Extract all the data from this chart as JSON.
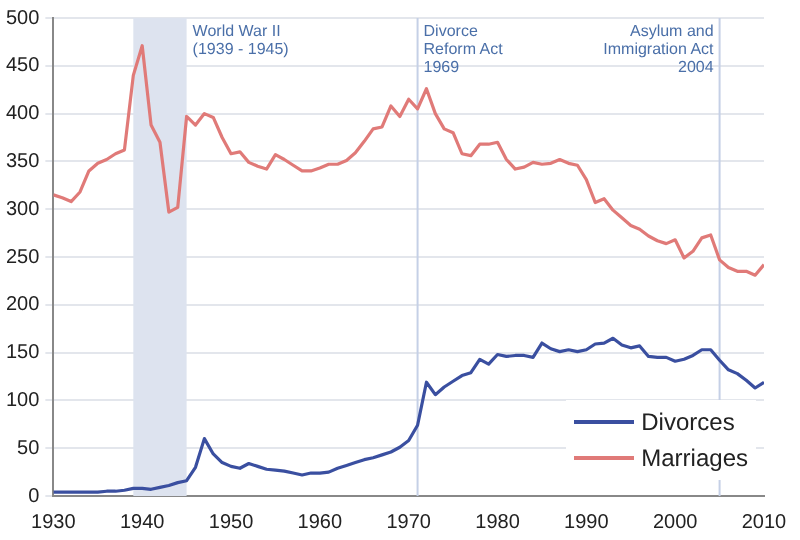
{
  "chart_data": {
    "type": "line",
    "x": [
      1930,
      1931,
      1932,
      1933,
      1934,
      1935,
      1936,
      1937,
      1938,
      1939,
      1940,
      1941,
      1942,
      1943,
      1944,
      1945,
      1946,
      1947,
      1948,
      1949,
      1950,
      1951,
      1952,
      1953,
      1954,
      1955,
      1956,
      1957,
      1958,
      1959,
      1960,
      1961,
      1962,
      1963,
      1964,
      1965,
      1966,
      1967,
      1968,
      1969,
      1970,
      1971,
      1972,
      1973,
      1974,
      1975,
      1976,
      1977,
      1978,
      1979,
      1980,
      1981,
      1982,
      1983,
      1984,
      1985,
      1986,
      1987,
      1988,
      1989,
      1990,
      1991,
      1992,
      1993,
      1994,
      1995,
      1996,
      1997,
      1998,
      1999,
      2000,
      2001,
      2002,
      2003,
      2004,
      2005,
      2006,
      2007,
      2008,
      2009,
      2010
    ],
    "series": [
      {
        "name": "Divorces",
        "color": "#3a4fa0",
        "values": [
          4,
          4,
          4,
          4,
          4,
          4,
          5,
          5,
          6,
          8,
          8,
          7,
          9,
          11,
          14,
          16,
          30,
          60,
          44,
          35,
          31,
          29,
          34,
          31,
          28,
          27,
          26,
          24,
          22,
          24,
          24,
          25,
          29,
          32,
          35,
          38,
          40,
          43,
          46,
          51,
          58,
          74,
          119,
          106,
          114,
          120,
          126,
          129,
          143,
          138,
          148,
          146,
          147,
          147,
          145,
          160,
          154,
          151,
          153,
          151,
          153,
          159,
          160,
          165,
          158,
          155,
          157,
          146,
          145,
          145,
          141,
          143,
          147,
          153,
          153,
          142,
          132,
          128,
          121,
          113,
          119
        ]
      },
      {
        "name": "Marriages",
        "color": "#e07a78",
        "values": [
          315,
          312,
          308,
          318,
          340,
          348,
          352,
          358,
          362,
          440,
          471,
          388,
          370,
          297,
          302,
          397,
          388,
          400,
          396,
          375,
          358,
          360,
          349,
          345,
          342,
          357,
          352,
          346,
          340,
          340,
          343,
          347,
          347,
          351,
          359,
          371,
          384,
          386,
          408,
          397,
          415,
          405,
          426,
          400,
          384,
          380,
          358,
          356,
          368,
          368,
          370,
          352,
          342,
          344,
          349,
          347,
          348,
          352,
          348,
          346,
          331,
          307,
          311,
          299,
          291,
          283,
          279,
          272,
          267,
          264,
          268,
          249,
          256,
          270,
          273,
          247,
          239,
          235,
          235,
          231,
          242
        ]
      }
    ],
    "xlim": [
      1930,
      2010
    ],
    "xticks": [
      1930,
      1940,
      1950,
      1960,
      1970,
      1980,
      1990,
      2000,
      2010
    ],
    "ylim": [
      0,
      500
    ],
    "yticks": [
      0,
      50,
      100,
      150,
      200,
      250,
      300,
      350,
      400,
      450,
      500
    ],
    "grid": "y",
    "legend": "bottom right",
    "bands": [
      {
        "axis": "x",
        "from": 1939,
        "to": 1945,
        "label": "World War II\n(1939 - 1945)",
        "color": "#dde3ef"
      }
    ],
    "ref_lines": [
      {
        "axis": "x",
        "value": 1971,
        "label": "Divorce\nReform Act\n1969",
        "color": "#c5d0e6"
      },
      {
        "axis": "x",
        "value": 2005,
        "label": "Asylum and\nImmigration Act\n2004",
        "color": "#c5d0e6"
      }
    ]
  }
}
